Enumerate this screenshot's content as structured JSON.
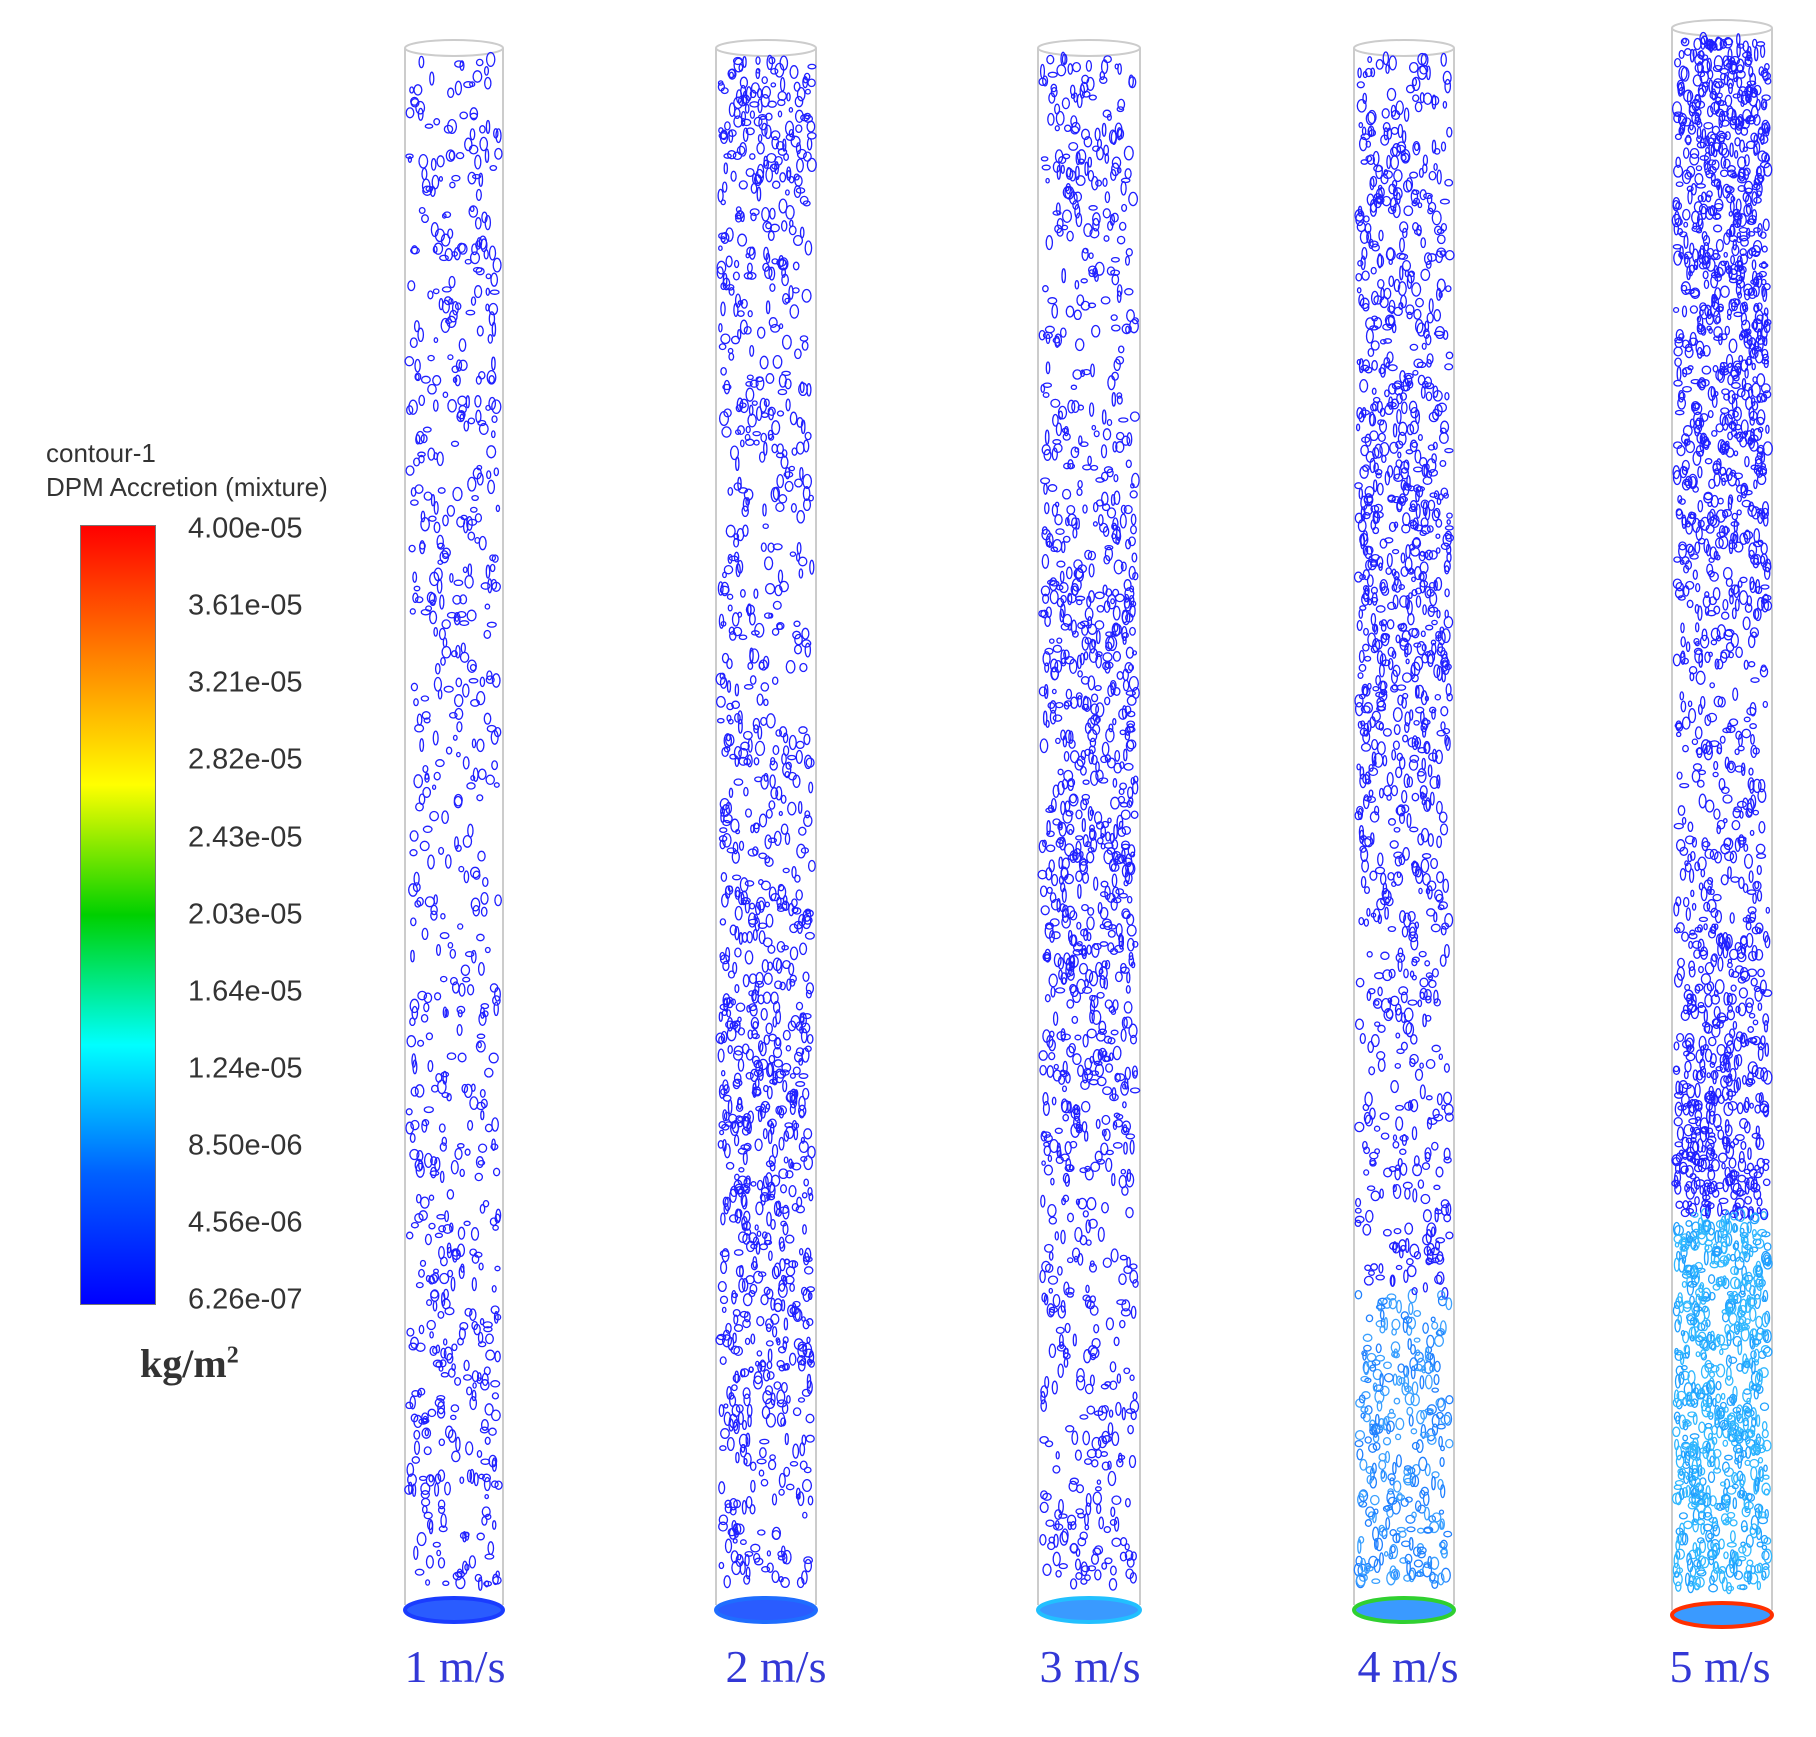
{
  "legend": {
    "title_line1": "contour-1",
    "title_line2": "DPM Accretion (mixture)",
    "ticks": [
      "4.00e-05",
      "3.61e-05",
      "3.21e-05",
      "2.82e-05",
      "2.43e-05",
      "2.03e-05",
      "1.64e-05",
      "1.24e-05",
      "8.50e-06",
      "4.56e-06",
      "6.26e-07"
    ],
    "unit_base": "kg/m",
    "unit_sup": "2",
    "colormap": [
      "#ff0000",
      "#ff8000",
      "#ffff00",
      "#00d000",
      "#00ffff",
      "#0060ff",
      "#0000ff"
    ]
  },
  "tubes": [
    {
      "label": "1 m/s",
      "density": 0.25
    },
    {
      "label": "2 m/s",
      "density": 0.55
    },
    {
      "label": "3 m/s",
      "density": 0.6
    },
    {
      "label": "4 m/s",
      "density": 0.65
    },
    {
      "label": "5 m/s",
      "density": 1.0
    }
  ]
}
